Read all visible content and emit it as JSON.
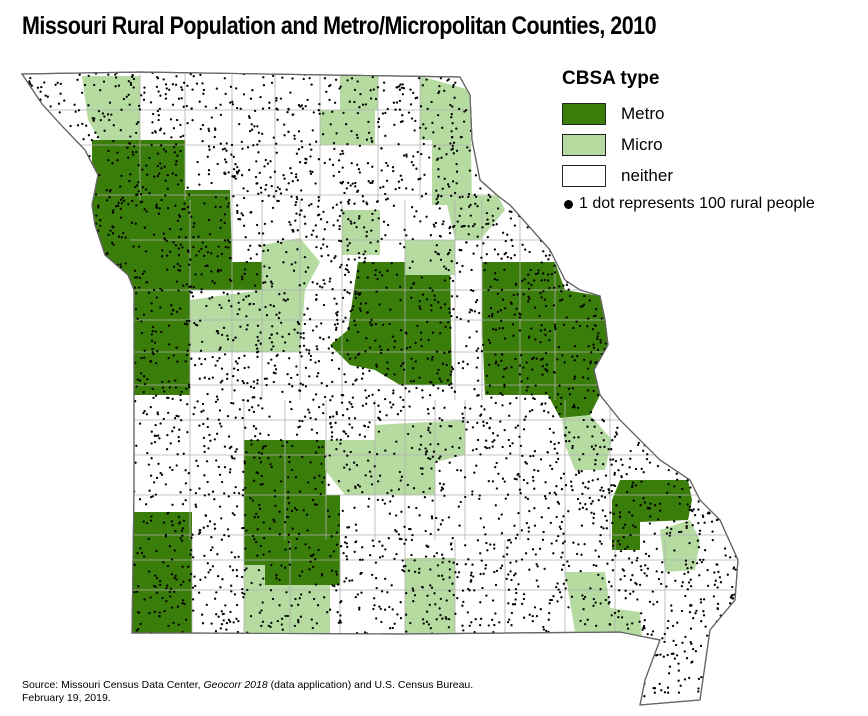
{
  "title": "Missouri Rural Population and Metro/Micropolitan Counties, 2010",
  "legend": {
    "title": "CBSA type",
    "items": [
      {
        "label": "Metro",
        "color": "#3a7d0a"
      },
      {
        "label": "Micro",
        "color": "#b5dba0"
      },
      {
        "label": "neither",
        "color": "#ffffff"
      }
    ],
    "dot_note": "1 dot represents 100 rural people"
  },
  "source": {
    "prefix": "Source: Missouri Census Data Center, ",
    "italic": "Geocorr 2018",
    "suffix": " (data application) and U.S. Census Bureau.",
    "date": "February 19, 2019."
  },
  "colors": {
    "metro": "#3a7d0a",
    "micro": "#b5dba0",
    "neither": "#ffffff",
    "border": "#b0b0b0",
    "dot": "#000000"
  }
}
